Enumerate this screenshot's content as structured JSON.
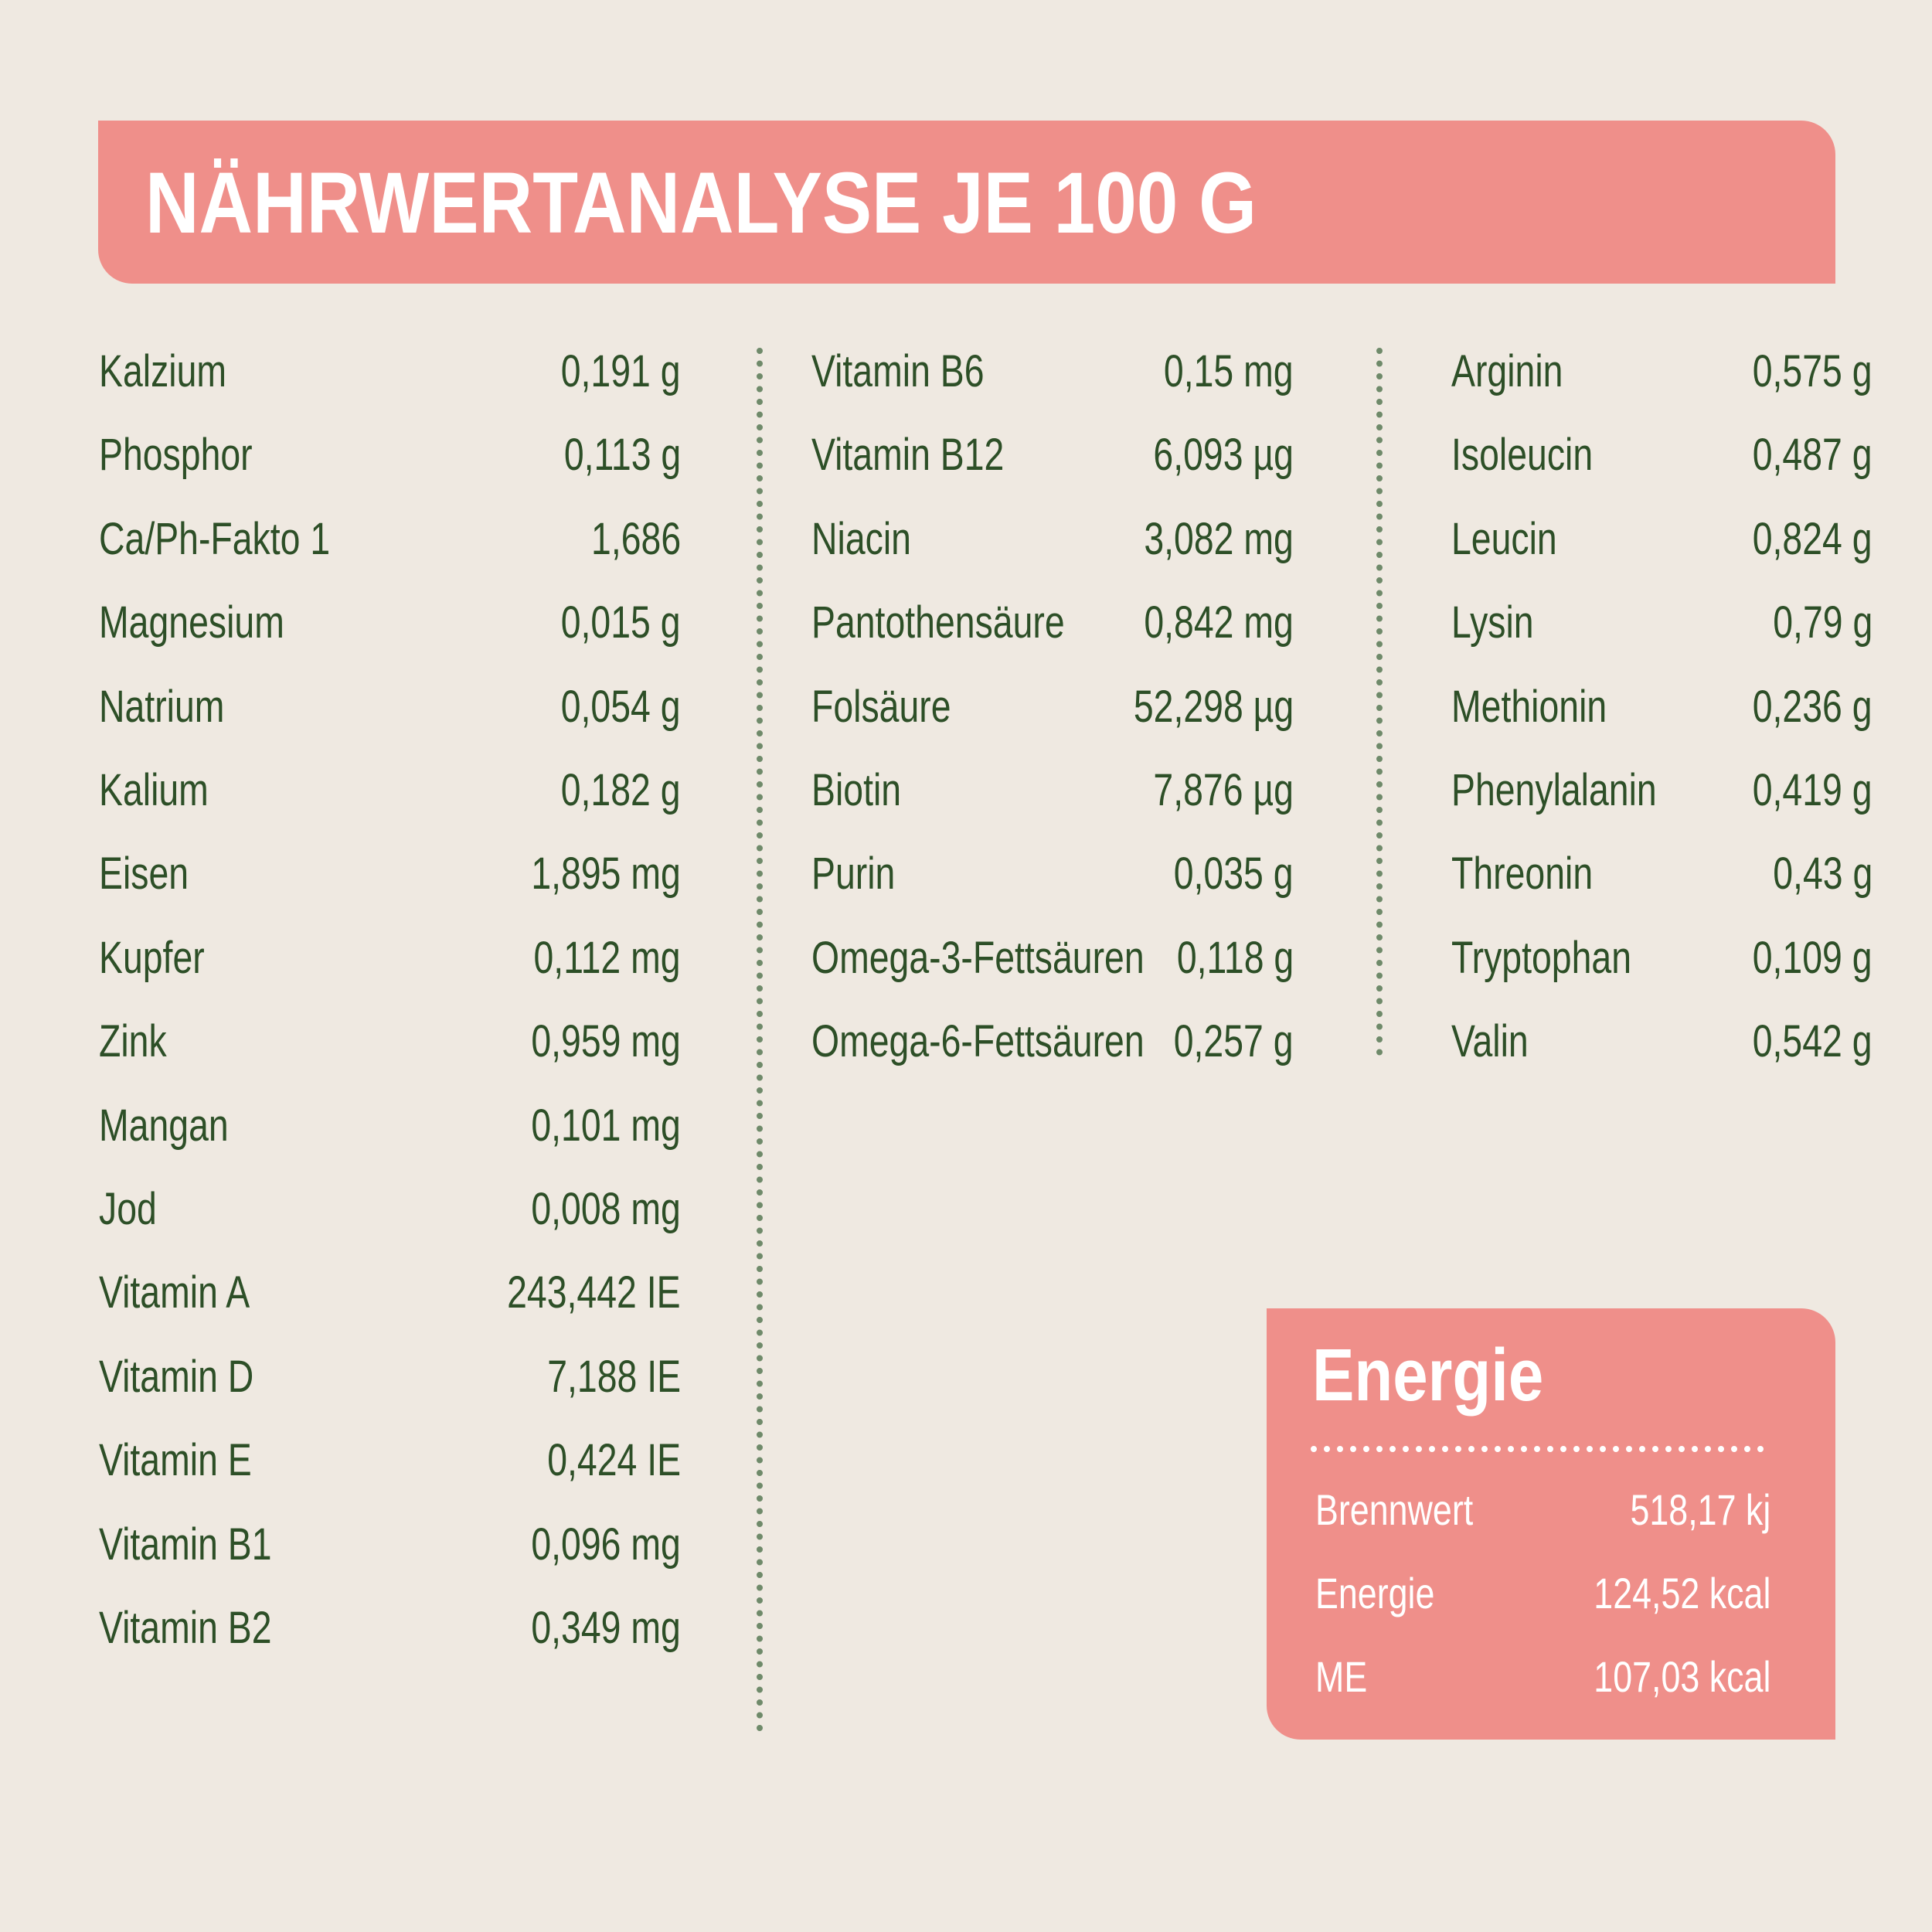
{
  "header": {
    "title": "NÄHRWERTANALYSE JE 100 G"
  },
  "columns": [
    {
      "rows": [
        [
          "Kalzium",
          "0,191 g"
        ],
        [
          "Phosphor",
          "0,113 g"
        ],
        [
          "Ca/Ph-Fakto 1",
          "1,686"
        ],
        [
          "Magnesium",
          "0,015 g"
        ],
        [
          "Natrium",
          "0,054 g"
        ],
        [
          "Kalium",
          "0,182 g"
        ],
        [
          "Eisen",
          "1,895 mg"
        ],
        [
          "Kupfer",
          "0,112 mg"
        ],
        [
          "Zink",
          "0,959 mg"
        ],
        [
          "Mangan",
          "0,101 mg"
        ],
        [
          "Jod",
          "0,008 mg"
        ],
        [
          "Vitamin A",
          "243,442 IE"
        ],
        [
          "Vitamin D",
          "7,188 IE"
        ],
        [
          "Vitamin E",
          "0,424 IE"
        ],
        [
          "Vitamin B1",
          "0,096 mg"
        ],
        [
          "Vitamin B2",
          "0,349 mg"
        ]
      ]
    },
    {
      "rows": [
        [
          "Vitamin B6",
          "0,15 mg"
        ],
        [
          "Vitamin B12",
          "6,093 µg"
        ],
        [
          "Niacin",
          "3,082 mg"
        ],
        [
          "Pantothensäure",
          "0,842 mg"
        ],
        [
          "Folsäure",
          "52,298 µg"
        ],
        [
          "Biotin",
          "7,876 µg"
        ],
        [
          "Purin",
          "0,035 g"
        ],
        [
          "Omega-3-Fettsäuren",
          "0,118 g"
        ],
        [
          "Omega-6-Fettsäuren",
          "0,257 g"
        ]
      ]
    },
    {
      "rows": [
        [
          "Arginin",
          "0,575 g"
        ],
        [
          "Isoleucin",
          "0,487 g"
        ],
        [
          "Leucin",
          "0,824 g"
        ],
        [
          "Lysin",
          "0,79 g"
        ],
        [
          "Methionin",
          "0,236 g"
        ],
        [
          "Phenylalanin",
          "0,419 g"
        ],
        [
          "Threonin",
          "0,43 g"
        ],
        [
          "Tryptophan",
          "0,109 g"
        ],
        [
          "Valin",
          "0,542 g"
        ]
      ]
    }
  ],
  "energy": {
    "title": "Energie",
    "rows": [
      [
        "Brennwert",
        "518,17 kj"
      ],
      [
        "Energie",
        "124,52 kcal"
      ],
      [
        "ME",
        "107,03 kcal"
      ]
    ]
  }
}
